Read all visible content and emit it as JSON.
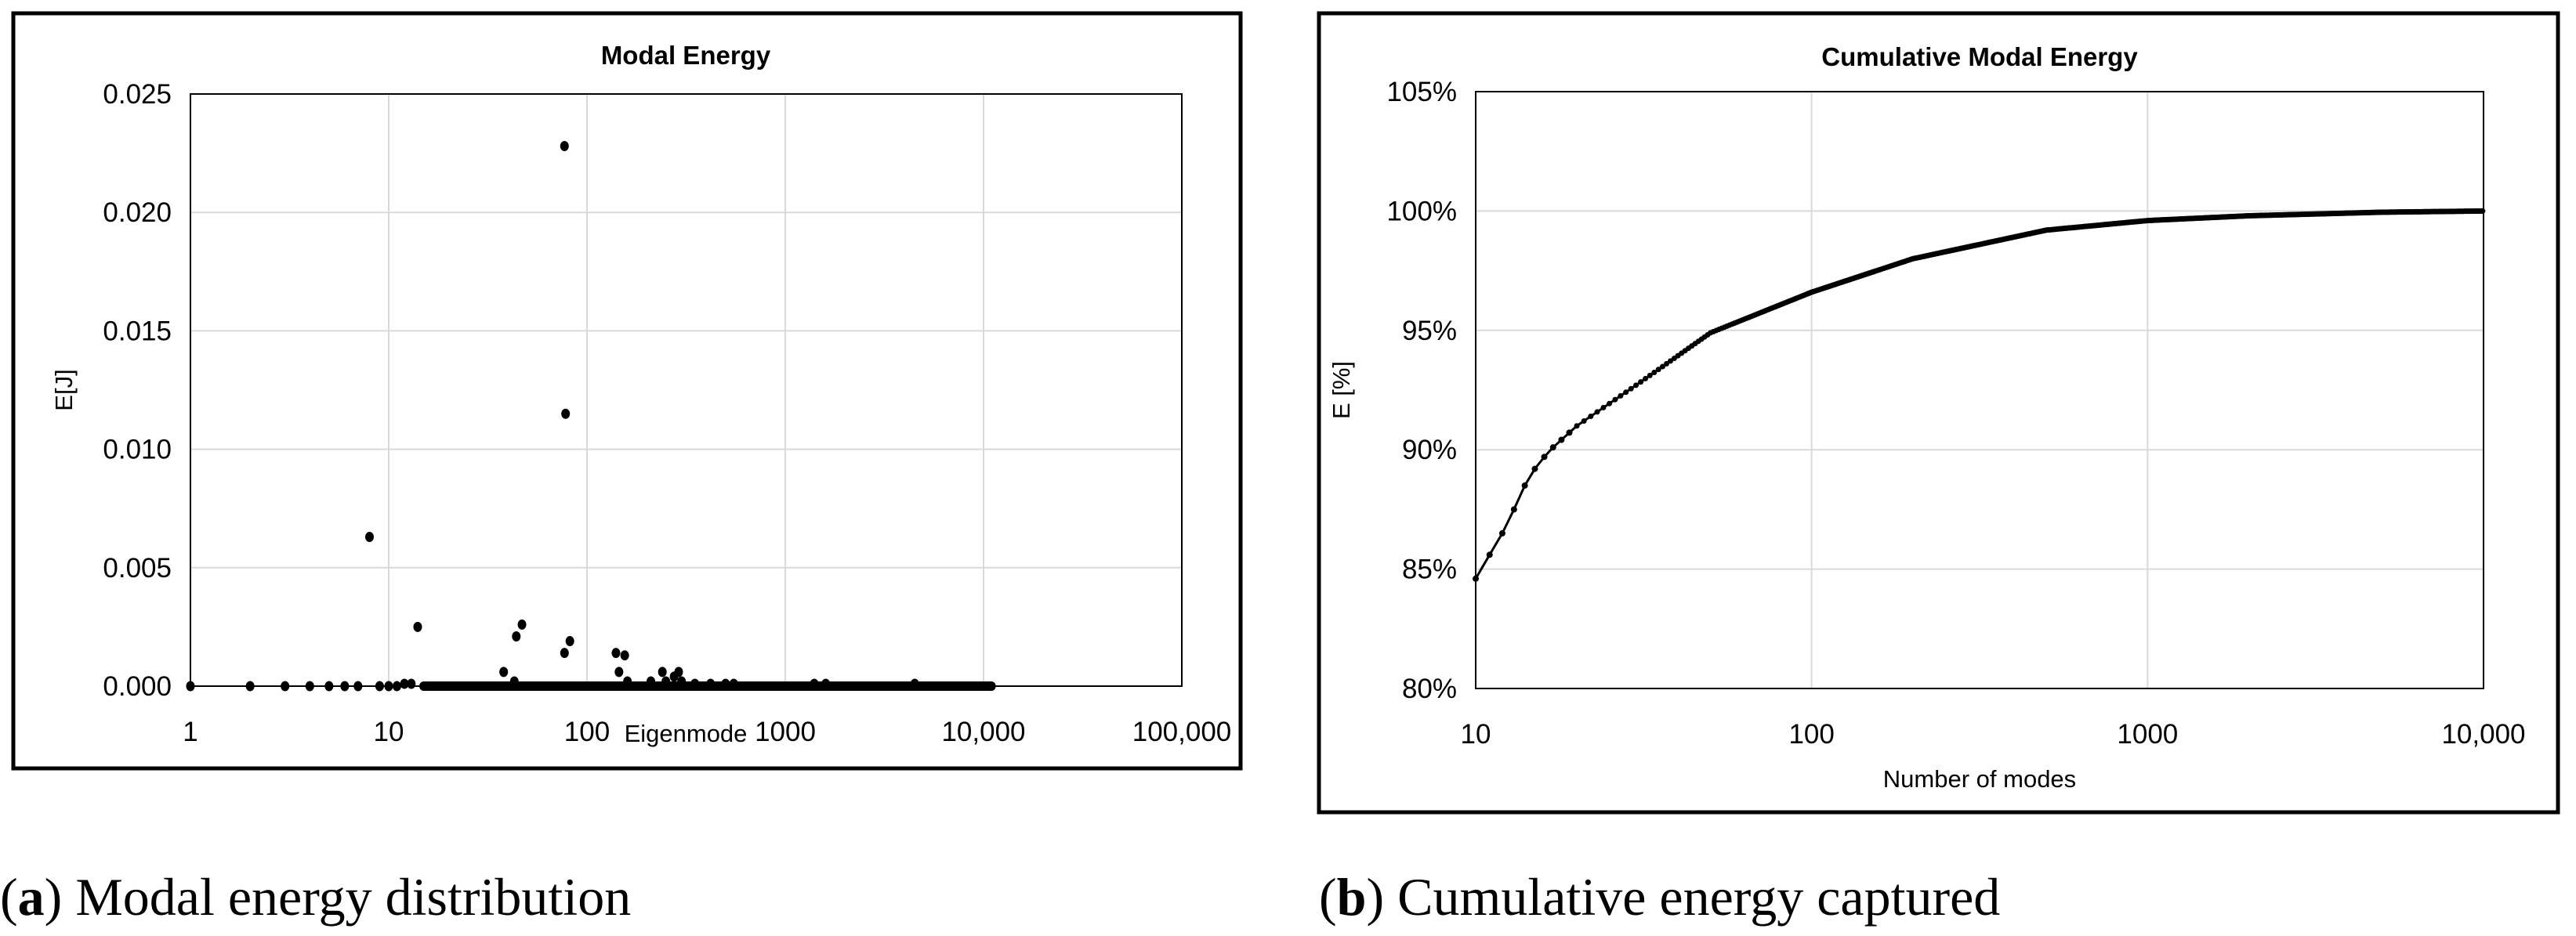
{
  "chart_data": [
    {
      "type": "scatter",
      "title": "Modal Energy",
      "xlabel": "Eigenmode",
      "ylabel": "E[J]",
      "xscale": "log",
      "xlim": [
        1,
        100000
      ],
      "ylim": [
        0,
        0.025
      ],
      "xticks": [
        1,
        10,
        100,
        1000,
        10000,
        100000
      ],
      "xtick_labels": [
        "1",
        "10",
        "100",
        "1000",
        "10,000",
        "100,000"
      ],
      "yticks": [
        0,
        0.005,
        0.01,
        0.015,
        0.02,
        0.025
      ],
      "ytick_labels": [
        "0.000",
        "0.005",
        "0.010",
        "0.015",
        "0.020",
        "0.025"
      ],
      "grid": true,
      "caption_label": "a",
      "caption_text": " Modal energy distribution",
      "points": [
        [
          1,
          0
        ],
        [
          2,
          0
        ],
        [
          3,
          0
        ],
        [
          4,
          0
        ],
        [
          5,
          0
        ],
        [
          6,
          0
        ],
        [
          7,
          0
        ],
        [
          8,
          0.0063
        ],
        [
          9,
          0
        ],
        [
          10,
          0
        ],
        [
          11,
          0
        ],
        [
          12,
          0.0001
        ],
        [
          13,
          0.0001
        ],
        [
          14,
          0.0025
        ],
        [
          38,
          0.0006
        ],
        [
          43,
          0.0002
        ],
        [
          44,
          0.0021
        ],
        [
          47,
          0.0026
        ],
        [
          77,
          0.0228
        ],
        [
          78,
          0.0115
        ],
        [
          77,
          0.0014
        ],
        [
          82,
          0.0019
        ],
        [
          140,
          0.0014
        ],
        [
          145,
          0.0006
        ],
        [
          155,
          0.0013
        ],
        [
          160,
          0.0002
        ],
        [
          210,
          0.0002
        ],
        [
          240,
          0.0006
        ],
        [
          250,
          0.0002
        ],
        [
          275,
          0.0004
        ],
        [
          290,
          0.0006
        ],
        [
          300,
          0.0002
        ],
        [
          350,
          0.0001
        ],
        [
          420,
          0.0001
        ],
        [
          500,
          0.0001
        ],
        [
          550,
          0.0001
        ],
        [
          1400,
          0.0001
        ],
        [
          1600,
          0.0001
        ],
        [
          4500,
          0.0001
        ]
      ],
      "baseline_series": {
        "from": 15,
        "to": 11000,
        "value": 0
      }
    },
    {
      "type": "line",
      "title": "Cumulative Modal Energy",
      "xlabel": "Number of modes",
      "ylabel": "E [%]",
      "xscale": "log",
      "xlim": [
        10,
        10000
      ],
      "ylim": [
        80,
        105
      ],
      "xticks": [
        10,
        100,
        1000,
        10000
      ],
      "xtick_labels": [
        "10",
        "100",
        "1000",
        "10,000"
      ],
      "yticks": [
        80,
        85,
        90,
        95,
        100,
        105
      ],
      "ytick_labels": [
        "80%",
        "85%",
        "90%",
        "95%",
        "100%",
        "105%"
      ],
      "grid": true,
      "caption_label": "b",
      "caption_text": " Cumulative energy captured",
      "x": [
        10,
        11,
        12,
        13,
        14,
        15,
        16,
        17,
        20,
        30,
        50,
        100,
        200,
        500,
        1000,
        2000,
        5000,
        10000
      ],
      "y": [
        84.6,
        85.6,
        86.5,
        87.5,
        88.5,
        89.2,
        89.7,
        90.1,
        91.0,
        92.7,
        94.9,
        96.6,
        98.0,
        99.2,
        99.6,
        99.8,
        99.95,
        100.0
      ]
    }
  ]
}
